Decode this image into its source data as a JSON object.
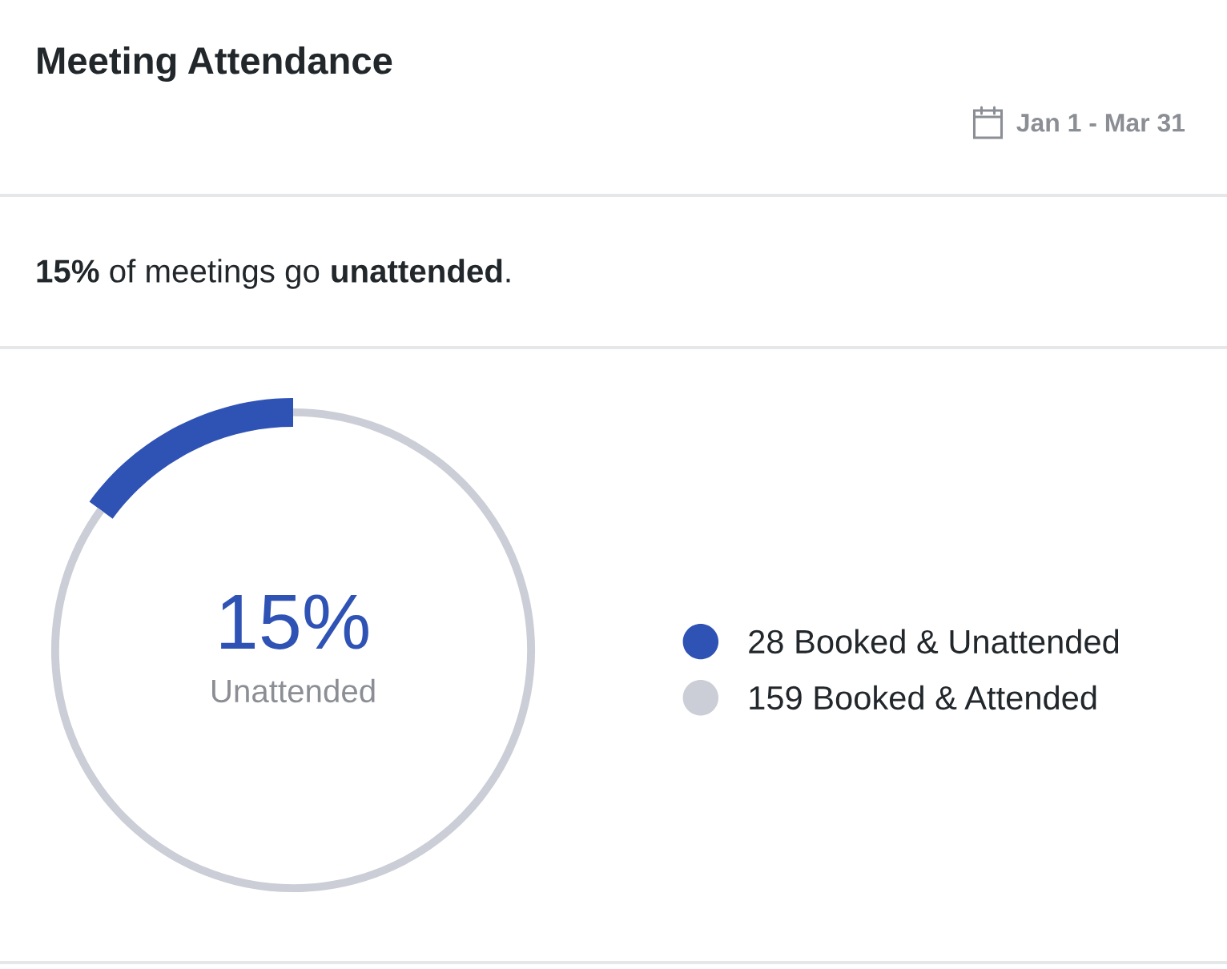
{
  "chart_data": {
    "type": "donut",
    "title": "Meeting Attendance",
    "categories": [
      "28 Booked & Unattended",
      "159 Booked & Attended"
    ],
    "values": [
      28,
      159
    ],
    "colors": [
      "#2f52b5",
      "#cbced6"
    ],
    "legend": "right",
    "annotations": [
      "15% of meetings go unattended.",
      "Jan 1 - Mar 31",
      "15%",
      "Unattended"
    ]
  }
}
